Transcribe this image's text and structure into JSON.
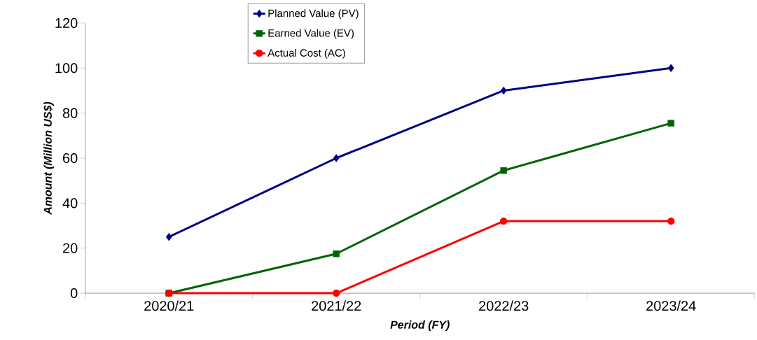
{
  "chart_data": {
    "type": "line",
    "xlabel": "Period (FY)",
    "ylabel": "Amount (Million US$)",
    "categories": [
      "2020/21",
      "2021/22",
      "2022/23",
      "2023/24"
    ],
    "series": [
      {
        "name": "Planned Value (PV)",
        "color": "#000080",
        "marker": "diamond",
        "values": [
          25,
          60,
          90,
          100
        ]
      },
      {
        "name": "Earned Value (EV)",
        "color": "#006400",
        "marker": "square",
        "values": [
          0,
          17.5,
          54.5,
          75.5
        ]
      },
      {
        "name": "Actual Cost (AC)",
        "color": "#ff0000",
        "marker": "circle",
        "values": [
          0,
          0,
          32,
          32
        ]
      }
    ],
    "ylim": [
      0,
      120
    ],
    "yticks": [
      0,
      20,
      40,
      60,
      80,
      100,
      120
    ],
    "legend": "top",
    "grid": false
  }
}
